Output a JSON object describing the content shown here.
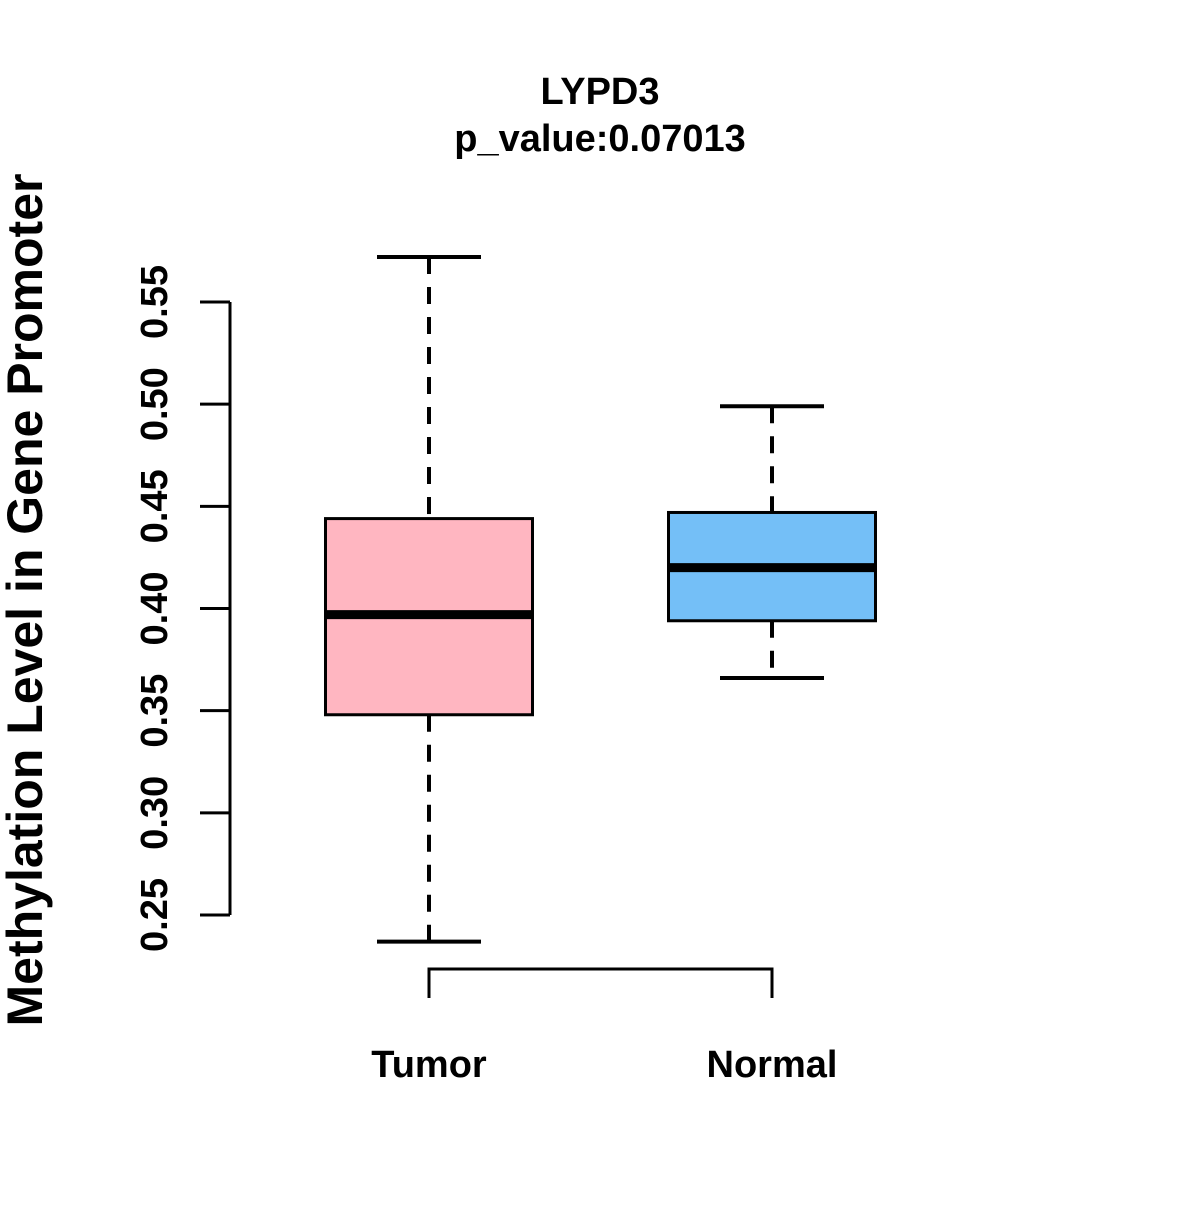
{
  "page": {
    "background": "#ffffff",
    "text_color": "#000000"
  },
  "chart_data": {
    "type": "boxplot",
    "title": "LYPD3",
    "subtitle": "p_value:0.07013",
    "ylabel": "Methylation Level in Gene Promoter",
    "xlabel": "",
    "categories": [
      "Tumor",
      "Normal"
    ],
    "grid": false,
    "legend": "none",
    "y_axis": {
      "ticks": [
        0.25,
        0.3,
        0.35,
        0.4,
        0.45,
        0.5,
        0.55
      ],
      "tick_labels": [
        "0.25",
        "0.30",
        "0.35",
        "0.40",
        "0.45",
        "0.50",
        "0.55"
      ],
      "tick_step": 0.05,
      "range_shown": [
        0.23,
        0.58
      ]
    },
    "series": [
      {
        "name": "Tumor",
        "fill_color": "#FFB6C1",
        "stroke_color": "#000000",
        "whisker_low": 0.237,
        "q1": 0.348,
        "median": 0.397,
        "q3": 0.444,
        "whisker_high": 0.572
      },
      {
        "name": "Normal",
        "fill_color": "#74BFF7",
        "stroke_color": "#000000",
        "whisker_low": 0.366,
        "q1": 0.394,
        "median": 0.42,
        "q3": 0.447,
        "whisker_high": 0.499
      }
    ]
  }
}
